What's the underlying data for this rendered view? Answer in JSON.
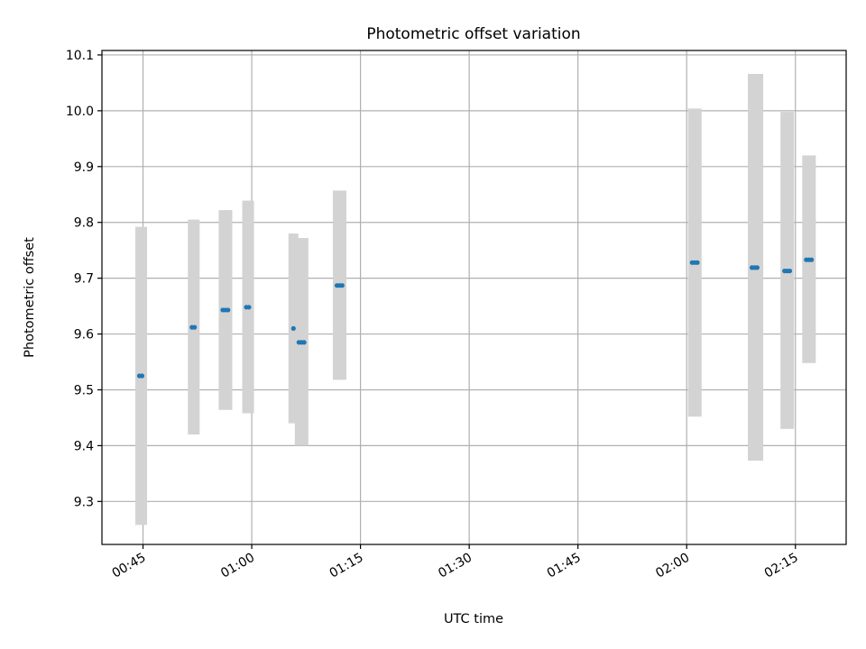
{
  "chart_data": {
    "type": "scatter",
    "title": "Photometric offset variation",
    "xlabel": "UTC time",
    "ylabel": "Photometric offset",
    "x_tick_labels": [
      "00:45",
      "01:00",
      "01:15",
      "01:30",
      "01:45",
      "02:00",
      "02:15"
    ],
    "y_tick_labels": [
      "9.3",
      "9.4",
      "9.5",
      "9.6",
      "9.7",
      "9.8",
      "9.9",
      "10.0",
      "10.1"
    ],
    "x_tick_values": [
      "00:45",
      "01:00",
      "01:15",
      "01:30",
      "01:45",
      "02:00",
      "02:15"
    ],
    "y_tick_values": [
      9.3,
      9.4,
      9.5,
      9.6,
      9.7,
      9.8,
      9.9,
      10.0,
      10.1
    ],
    "xlim": [
      "00:39:20",
      "02:22:00"
    ],
    "ylim": [
      9.223,
      10.108
    ],
    "grid": true,
    "legend": "none",
    "colors": {
      "points": "#1f77b4",
      "error_bars": "#d3d3d3",
      "grid": "#b0b0b0"
    },
    "series": [
      {
        "points": [
          {
            "x": "00:44:30",
            "x_end": "00:45:00",
            "y": 9.525,
            "y_low": 9.258,
            "y_high": 9.792
          },
          {
            "x": "00:51:45",
            "x_end": "00:52:15",
            "y": 9.612,
            "y_low": 9.42,
            "y_high": 9.805
          },
          {
            "x": "00:56:00",
            "x_end": "00:56:45",
            "y": 9.643,
            "y_low": 9.464,
            "y_high": 9.822
          },
          {
            "x": "00:59:15",
            "x_end": "00:59:45",
            "y": 9.648,
            "y_low": 9.458,
            "y_high": 9.839
          },
          {
            "x": "01:05:45",
            "x_end": "01:05:45",
            "y": 9.61,
            "y_low": 9.44,
            "y_high": 9.78
          },
          {
            "x": "01:06:30",
            "x_end": "01:07:15",
            "y": 9.585,
            "y_low": 9.4,
            "y_high": 9.772
          },
          {
            "x": "01:11:45",
            "x_end": "01:12:30",
            "y": 9.687,
            "y_low": 9.518,
            "y_high": 9.857
          },
          {
            "x": "02:00:45",
            "x_end": "02:01:30",
            "y": 9.728,
            "y_low": 9.452,
            "y_high": 10.004
          },
          {
            "x": "02:09:00",
            "x_end": "02:10:00",
            "y": 9.719,
            "y_low": 9.373,
            "y_high": 10.066
          },
          {
            "x": "02:13:30",
            "x_end": "02:14:15",
            "y": 9.713,
            "y_low": 9.43,
            "y_high": 9.998
          },
          {
            "x": "02:16:30",
            "x_end": "02:17:15",
            "y": 9.733,
            "y_low": 9.548,
            "y_high": 9.92
          }
        ]
      }
    ]
  }
}
